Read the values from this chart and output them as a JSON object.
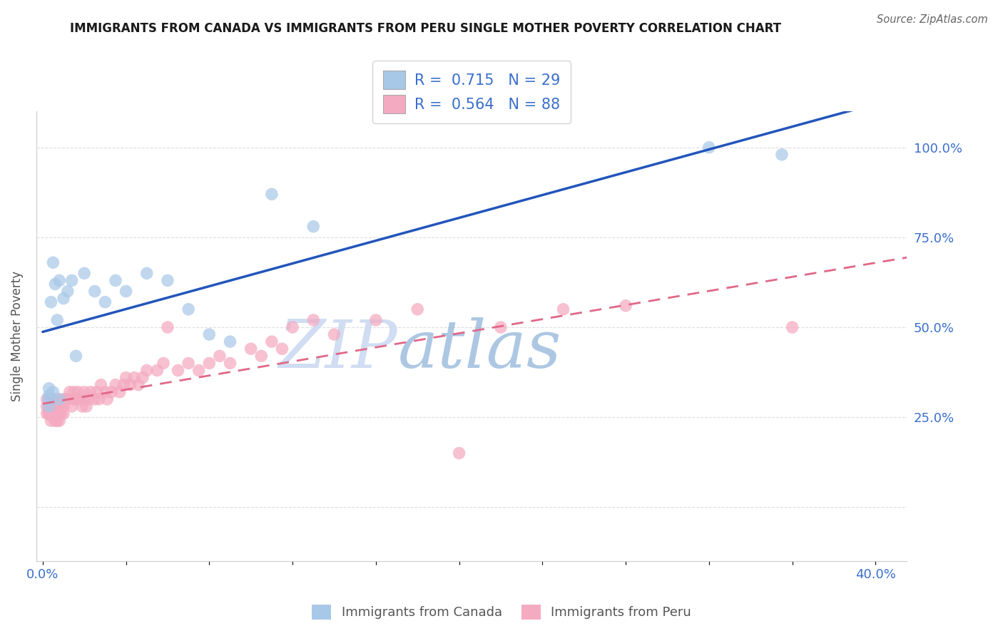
{
  "title": "IMMIGRANTS FROM CANADA VS IMMIGRANTS FROM PERU SINGLE MOTHER POVERTY CORRELATION CHART",
  "source": "Source: ZipAtlas.com",
  "ylabel": "Single Mother Poverty",
  "canada_R": 0.715,
  "canada_N": 29,
  "peru_R": 0.564,
  "peru_N": 88,
  "canada_color": "#a8c8e8",
  "peru_color": "#f4aac0",
  "canada_line_color": "#2255bb",
  "peru_line_color": "#e06888",
  "background_color": "#ffffff",
  "grid_color": "#dddddd",
  "watermark_zip_color": "#c8d8ee",
  "watermark_atlas_color": "#a0b8d8",
  "title_color": "#1a1a1a",
  "axis_tick_color": "#3a6fcc",
  "label_color": "#555555",
  "xlim_min": -0.003,
  "xlim_max": 0.415,
  "ylim_min": -0.15,
  "ylim_max": 1.1,
  "canada_x": [
    0.003,
    0.003,
    0.003,
    0.003,
    0.004,
    0.005,
    0.005,
    0.006,
    0.007,
    0.008,
    0.008,
    0.01,
    0.012,
    0.014,
    0.016,
    0.02,
    0.025,
    0.03,
    0.035,
    0.04,
    0.05,
    0.06,
    0.07,
    0.08,
    0.09,
    0.11,
    0.13,
    0.32,
    0.355
  ],
  "canada_y": [
    0.3,
    0.33,
    0.28,
    0.31,
    0.57,
    0.68,
    0.32,
    0.62,
    0.52,
    0.63,
    0.3,
    0.58,
    0.6,
    0.63,
    0.42,
    0.65,
    0.6,
    0.57,
    0.63,
    0.6,
    0.65,
    0.63,
    0.55,
    0.48,
    0.46,
    0.87,
    0.78,
    1.0,
    0.98
  ],
  "peru_x": [
    0.002,
    0.002,
    0.002,
    0.003,
    0.003,
    0.003,
    0.003,
    0.003,
    0.004,
    0.004,
    0.004,
    0.004,
    0.004,
    0.005,
    0.005,
    0.005,
    0.005,
    0.005,
    0.006,
    0.006,
    0.006,
    0.007,
    0.007,
    0.007,
    0.007,
    0.008,
    0.008,
    0.008,
    0.009,
    0.009,
    0.01,
    0.01,
    0.01,
    0.01,
    0.011,
    0.012,
    0.013,
    0.014,
    0.015,
    0.015,
    0.016,
    0.017,
    0.018,
    0.019,
    0.02,
    0.02,
    0.021,
    0.022,
    0.023,
    0.025,
    0.026,
    0.027,
    0.028,
    0.03,
    0.031,
    0.033,
    0.035,
    0.037,
    0.039,
    0.04,
    0.042,
    0.044,
    0.046,
    0.048,
    0.05,
    0.055,
    0.058,
    0.06,
    0.065,
    0.07,
    0.075,
    0.08,
    0.085,
    0.09,
    0.1,
    0.105,
    0.11,
    0.115,
    0.12,
    0.13,
    0.14,
    0.16,
    0.18,
    0.2,
    0.22,
    0.25,
    0.28,
    0.36
  ],
  "peru_y": [
    0.28,
    0.3,
    0.26,
    0.26,
    0.28,
    0.3,
    0.26,
    0.27,
    0.24,
    0.26,
    0.28,
    0.3,
    0.26,
    0.26,
    0.28,
    0.25,
    0.27,
    0.3,
    0.24,
    0.26,
    0.28,
    0.24,
    0.26,
    0.28,
    0.3,
    0.26,
    0.28,
    0.24,
    0.26,
    0.28,
    0.28,
    0.3,
    0.26,
    0.28,
    0.3,
    0.3,
    0.32,
    0.28,
    0.3,
    0.32,
    0.3,
    0.32,
    0.3,
    0.28,
    0.3,
    0.32,
    0.28,
    0.3,
    0.32,
    0.3,
    0.32,
    0.3,
    0.34,
    0.32,
    0.3,
    0.32,
    0.34,
    0.32,
    0.34,
    0.36,
    0.34,
    0.36,
    0.34,
    0.36,
    0.38,
    0.38,
    0.4,
    0.5,
    0.38,
    0.4,
    0.38,
    0.4,
    0.42,
    0.4,
    0.44,
    0.42,
    0.46,
    0.44,
    0.5,
    0.52,
    0.48,
    0.52,
    0.55,
    0.15,
    0.5,
    0.55,
    0.56,
    0.5
  ],
  "marker_size": 160,
  "marker_alpha": 0.72
}
